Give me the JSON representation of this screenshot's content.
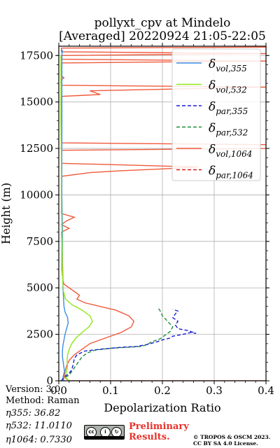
{
  "chart_data": {
    "type": "line",
    "title": "pollyxt_cpv at Mindelo",
    "subtitle": "[Averaged] 20220924 21:05-22:05",
    "xlabel": "Depolarization Ratio",
    "ylabel": "Height (m)",
    "xlim": [
      0,
      0.4
    ],
    "ylim": [
      0,
      18000
    ],
    "xticks": [
      "0.0",
      "0.1",
      "0.2",
      "0.3",
      "0.4"
    ],
    "yticks": [
      "0",
      "2500",
      "5000",
      "7500",
      "10000",
      "12500",
      "15000",
      "17500"
    ],
    "grid": true,
    "legend_position": "top-right",
    "series": [
      {
        "name": "δvol,355",
        "label_main": "δ",
        "label_sub": "vol,355",
        "color": "#3a8ee6",
        "dash": "solid",
        "points": [
          [
            0.01,
            0
          ],
          [
            0.008,
            150
          ],
          [
            0.009,
            300
          ],
          [
            0.011,
            500
          ],
          [
            0.01,
            700
          ],
          [
            0.009,
            900
          ],
          [
            0.008,
            1100
          ],
          [
            0.007,
            1300
          ],
          [
            0.007,
            1600
          ],
          [
            0.008,
            1900
          ],
          [
            0.01,
            2200
          ],
          [
            0.012,
            2500
          ],
          [
            0.015,
            2800
          ],
          [
            0.018,
            3100
          ],
          [
            0.017,
            3400
          ],
          [
            0.012,
            3700
          ],
          [
            0.01,
            4000
          ],
          [
            0.009,
            4500
          ],
          [
            0.008,
            5000
          ],
          [
            0.008,
            5500
          ],
          [
            0.007,
            6500
          ],
          [
            0.007,
            8000
          ],
          [
            0.006,
            10000
          ],
          [
            0.006,
            12000
          ],
          [
            0.006,
            14000
          ],
          [
            0.006,
            16000
          ],
          [
            0.006,
            17500
          ],
          [
            0.007,
            17800
          ]
        ]
      },
      {
        "name": "δvol,532",
        "label_main": "δ",
        "label_sub": "vol,532",
        "color": "#8fe817",
        "dash": "solid",
        "points": [
          [
            0.02,
            0
          ],
          [
            0.012,
            200
          ],
          [
            0.015,
            500
          ],
          [
            0.017,
            800
          ],
          [
            0.016,
            1100
          ],
          [
            0.017,
            1400
          ],
          [
            0.02,
            1700
          ],
          [
            0.025,
            2000
          ],
          [
            0.033,
            2300
          ],
          [
            0.045,
            2600
          ],
          [
            0.058,
            2900
          ],
          [
            0.065,
            3200
          ],
          [
            0.06,
            3500
          ],
          [
            0.045,
            3800
          ],
          [
            0.025,
            4100
          ],
          [
            0.013,
            4400
          ],
          [
            0.009,
            4800
          ],
          [
            0.008,
            5200
          ],
          [
            0.007,
            6000
          ],
          [
            0.006,
            8000
          ],
          [
            0.005,
            10000
          ],
          [
            0.005,
            12000
          ],
          [
            0.004,
            14000
          ],
          [
            0.004,
            16000
          ],
          [
            0.004,
            17500
          ]
        ]
      },
      {
        "name": "δpar,355",
        "label_main": "δ",
        "label_sub": "par,355",
        "color": "#1c1cd6",
        "dash": "5,3",
        "points": [
          [
            0.005,
            0
          ],
          [
            0.01,
            200
          ],
          [
            0.02,
            400
          ],
          [
            0.025,
            600
          ],
          [
            0.028,
            900
          ],
          [
            0.03,
            1200
          ],
          [
            0.035,
            1400
          ],
          [
            0.05,
            1600
          ],
          [
            0.08,
            1700
          ],
          [
            0.12,
            1800
          ],
          [
            0.15,
            1850
          ],
          [
            0.17,
            1950
          ],
          [
            0.19,
            2100
          ],
          [
            0.2,
            2200
          ],
          [
            0.215,
            2300
          ],
          [
            0.22,
            2400
          ],
          [
            0.24,
            2500
          ],
          [
            0.255,
            2600
          ],
          [
            0.265,
            2550
          ],
          [
            0.25,
            2700
          ],
          [
            0.23,
            2800
          ],
          [
            0.225,
            3000
          ],
          [
            0.23,
            3200
          ],
          [
            0.22,
            3400
          ],
          [
            0.225,
            3600
          ],
          [
            0.23,
            3750
          ],
          [
            0.22,
            3850
          ]
        ]
      },
      {
        "name": "δpar,532",
        "label_main": "δ",
        "label_sub": "par,532",
        "color": "#1e8c3a",
        "dash": "5,3",
        "points": [
          [
            0.005,
            0
          ],
          [
            0.01,
            150
          ],
          [
            0.02,
            300
          ],
          [
            0.025,
            500
          ],
          [
            0.03,
            700
          ],
          [
            0.035,
            900
          ],
          [
            0.04,
            1100
          ],
          [
            0.045,
            1300
          ],
          [
            0.055,
            1500
          ],
          [
            0.07,
            1650
          ],
          [
            0.1,
            1750
          ],
          [
            0.13,
            1800
          ],
          [
            0.16,
            1850
          ],
          [
            0.17,
            1950
          ],
          [
            0.18,
            2100
          ],
          [
            0.195,
            2250
          ],
          [
            0.205,
            2450
          ],
          [
            0.215,
            2650
          ],
          [
            0.22,
            2900
          ],
          [
            0.21,
            3200
          ],
          [
            0.2,
            3500
          ],
          [
            0.195,
            3800
          ],
          [
            0.19,
            3950
          ]
        ]
      },
      {
        "name": "δvol,1064",
        "label_main": "δ",
        "label_sub": "vol,1064",
        "color": "#f05a3c",
        "dash": "solid",
        "points": [
          [
            0.4,
            0
          ],
          [
            0.02,
            0
          ],
          [
            0.01,
            200
          ],
          [
            0.012,
            500
          ],
          [
            0.015,
            800
          ],
          [
            0.02,
            1100
          ],
          [
            0.03,
            1400
          ],
          [
            0.045,
            1700
          ],
          [
            0.06,
            2000
          ],
          [
            0.09,
            2300
          ],
          [
            0.12,
            2600
          ],
          [
            0.14,
            2900
          ],
          [
            0.145,
            3200
          ],
          [
            0.135,
            3500
          ],
          [
            0.11,
            3800
          ],
          [
            0.08,
            4000
          ],
          [
            0.05,
            4200
          ],
          [
            0.035,
            4400
          ],
          [
            0.04,
            4600
          ],
          [
            0.03,
            4800
          ],
          [
            0.02,
            5000
          ],
          [
            0.01,
            5200
          ],
          [
            0.008,
            5400
          ],
          [
            0.006,
            6000
          ],
          [
            0.006,
            7500
          ],
          [
            0.005,
            8000
          ],
          [
            0.02,
            8200
          ],
          [
            0.005,
            8400
          ],
          [
            0.015,
            8600
          ],
          [
            0.03,
            8800
          ],
          [
            0.005,
            9000
          ],
          [
            0.005,
            10500
          ],
          [
            0.005,
            11000
          ],
          [
            0.06,
            11200
          ],
          [
            0.12,
            11300
          ],
          [
            0.2,
            11400
          ],
          [
            0.27,
            11500
          ],
          [
            0.005,
            11700
          ],
          [
            0.005,
            12400
          ],
          [
            0.4,
            12500
          ],
          [
            0.4,
            12700
          ],
          [
            0.005,
            12800
          ],
          [
            0.005,
            15300
          ],
          [
            0.08,
            15400
          ],
          [
            0.06,
            15600
          ],
          [
            0.4,
            15800
          ],
          [
            0.005,
            15900
          ],
          [
            0.005,
            16200
          ],
          [
            0.01,
            16300
          ],
          [
            0.005,
            16400
          ],
          [
            0.005,
            17100
          ],
          [
            0.4,
            17200
          ],
          [
            0.005,
            17300
          ],
          [
            0.005,
            17500
          ],
          [
            0.4,
            17600
          ],
          [
            0.005,
            17700
          ],
          [
            0.005,
            17900
          ],
          [
            0.4,
            17950
          ]
        ]
      },
      {
        "name": "δpar,1064",
        "label_main": "δ",
        "label_sub": "par,1064",
        "color": "#d01c1c",
        "dash": "5,3",
        "points": []
      }
    ]
  },
  "footer": {
    "version": "Version: 3.0",
    "method": "Method: Raman",
    "eta355": "𝜂355:  36.82",
    "eta532": "𝜂532: 11.0110",
    "eta1064": "𝜂1064: 0.7330",
    "preliminary_line1": "Preliminary",
    "preliminary_line2": "Results.",
    "copyright_line1": "© TROPOS & OSCM 2023.",
    "copyright_line2": "CC BY SA 4.0 License.",
    "cc_badge": {
      "by": "BY",
      "sa": "SA",
      "cc": "cc"
    }
  }
}
